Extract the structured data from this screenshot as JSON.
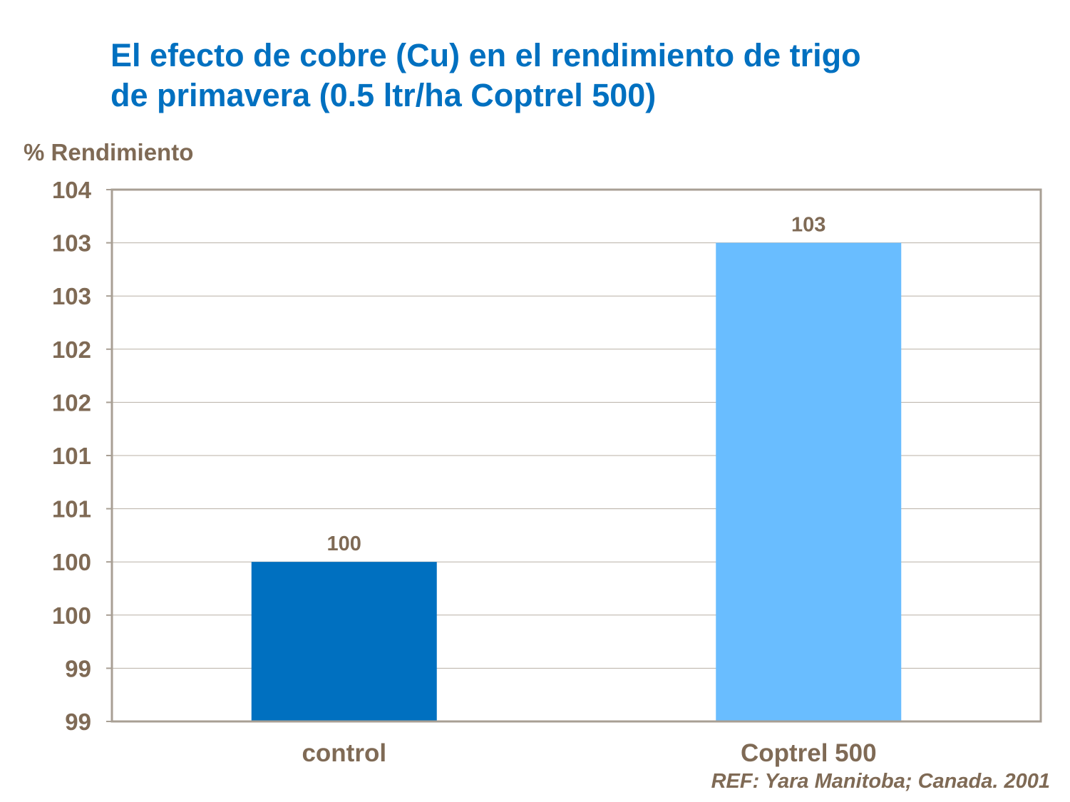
{
  "chart_data": {
    "type": "bar",
    "title": "El efecto de cobre (Cu) en el rendimiento de trigo de primavera (0.5 ltr/ha Coptrel 500)",
    "title_lines": [
      "El efecto de cobre (Cu) en el rendimiento de trigo",
      "de primavera (0.5 ltr/ha Coptrel 500)"
    ],
    "ylabel": "% Rendimiento",
    "xlabel": "",
    "categories": [
      "control",
      "Coptrel 500"
    ],
    "values": [
      100,
      103
    ],
    "data_labels": [
      "100",
      "103"
    ],
    "bar_colors": [
      "#0070C0",
      "#69BDFF"
    ],
    "ylim": [
      98.5,
      103.5
    ],
    "yticks": [
      98.5,
      99,
      99.5,
      100,
      100.5,
      101,
      101.5,
      102,
      102.5,
      103,
      103.5
    ],
    "ytick_labels": [
      "99",
      "99",
      "100",
      "100",
      "101",
      "101",
      "102",
      "102",
      "103",
      "103",
      "104"
    ],
    "grid": true,
    "legend": "none",
    "annotation": "REF: Yara Manitoba; Canada. 2001"
  }
}
